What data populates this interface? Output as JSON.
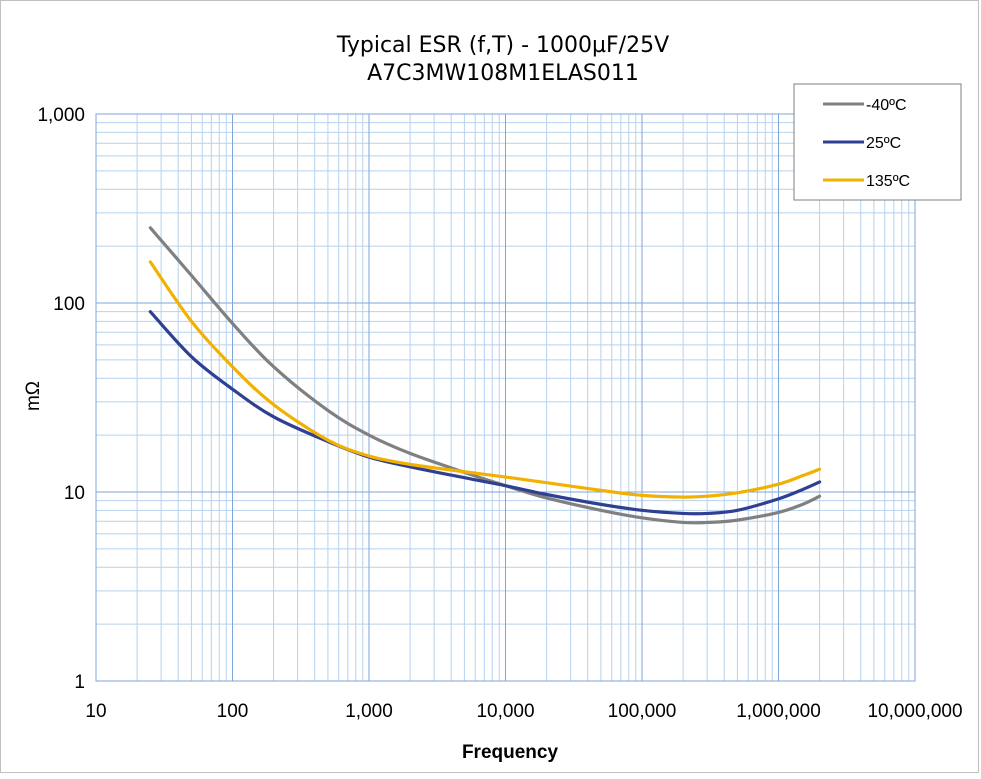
{
  "chart_data": {
    "type": "line",
    "title": "Typical ESR (f,T) - 1000µF/25V",
    "subtitle": "A7C3MW108M1ELAS011",
    "xlabel": "Frequency",
    "ylabel": "mΩ",
    "x_scale": "log",
    "y_scale": "log",
    "xlim": [
      10,
      10000000
    ],
    "ylim": [
      1,
      1000
    ],
    "grid": true,
    "legend_position": "top-right",
    "x_tick_labels": [
      "10",
      "100",
      "1,000",
      "10,000",
      "100,000",
      "1,000,000",
      "10,000,000"
    ],
    "y_tick_labels": [
      "1",
      "10",
      "100",
      "1,000"
    ],
    "series": [
      {
        "name": "-40ºC",
        "color": "#808080",
        "x": [
          25,
          50,
          100,
          200,
          500,
          1000,
          2000,
          5000,
          10000,
          20000,
          50000,
          100000,
          200000,
          300000,
          500000,
          1000000,
          1500000,
          2000000
        ],
        "y": [
          250,
          140,
          78,
          46,
          27,
          20,
          16,
          12.7,
          10.8,
          9.3,
          8.0,
          7.3,
          6.9,
          6.9,
          7.1,
          7.8,
          8.6,
          9.5
        ]
      },
      {
        "name": "25ºC",
        "color": "#2F3F91",
        "x": [
          25,
          50,
          100,
          200,
          500,
          1000,
          2000,
          5000,
          10000,
          20000,
          50000,
          100000,
          200000,
          300000,
          500000,
          1000000,
          1500000,
          2000000
        ],
        "y": [
          90,
          52,
          35,
          25,
          18.5,
          15.3,
          13.6,
          11.9,
          10.8,
          9.7,
          8.6,
          8.0,
          7.7,
          7.7,
          8.0,
          9.2,
          10.3,
          11.3
        ]
      },
      {
        "name": "135ºC",
        "color": "#F2B100",
        "x": [
          25,
          50,
          100,
          200,
          500,
          1000,
          2000,
          5000,
          10000,
          20000,
          50000,
          100000,
          200000,
          300000,
          500000,
          1000000,
          1500000,
          2000000
        ],
        "y": [
          165,
          80,
          46,
          29,
          18.8,
          15.5,
          14.0,
          12.8,
          12.0,
          11.2,
          10.2,
          9.6,
          9.4,
          9.5,
          9.9,
          11.0,
          12.2,
          13.2
        ]
      }
    ]
  }
}
